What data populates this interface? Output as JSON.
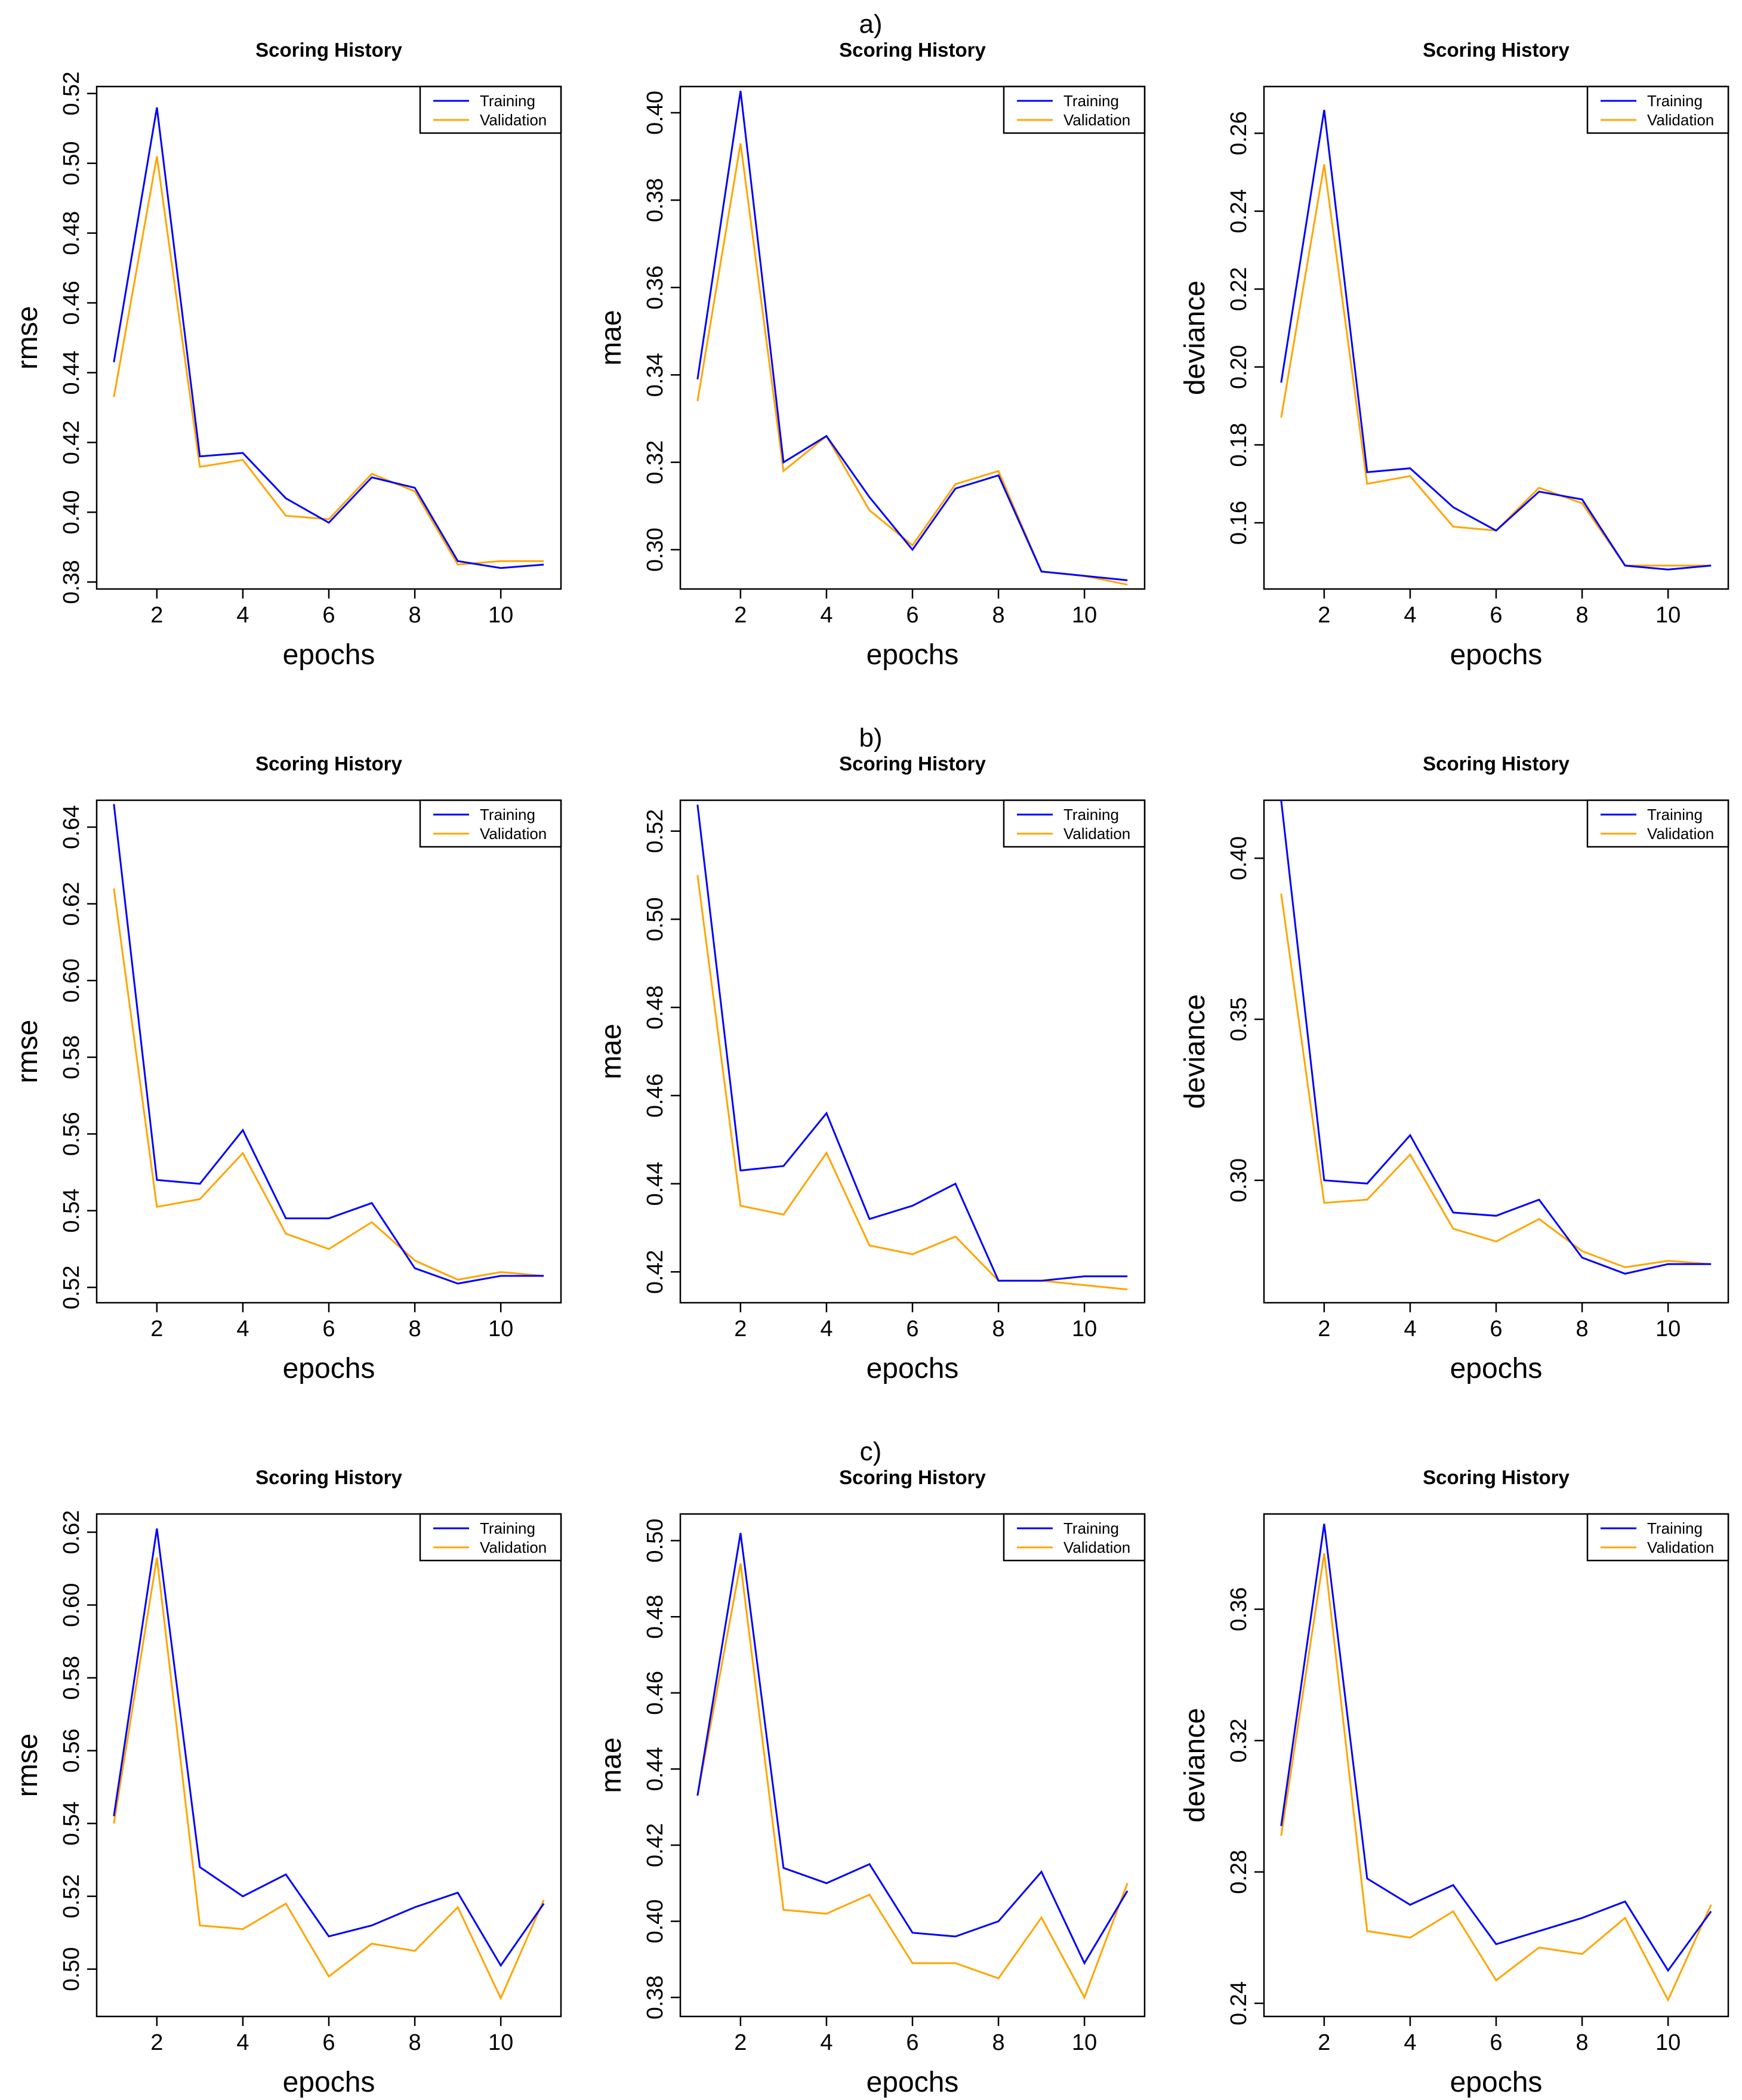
{
  "figure": {
    "row_labels": [
      "a)",
      "b)",
      "c)"
    ],
    "legend": {
      "training": "Training",
      "validation": "Validation"
    },
    "colors": {
      "training": "#0000FF",
      "validation": "#FFA500",
      "axes": "#000000",
      "background": "#FFFFFF"
    }
  },
  "chart_data": [
    {
      "type": "line",
      "title": "Scoring History",
      "xlabel": "epochs",
      "ylabel": "rmse",
      "xlim": [
        0.6,
        11.4
      ],
      "ylim": [
        0.378,
        0.522
      ],
      "xticks": [
        "2",
        "4",
        "6",
        "8",
        "10"
      ],
      "yticks": [
        "0.38",
        "0.40",
        "0.42",
        "0.44",
        "0.46",
        "0.48",
        "0.50",
        "0.52"
      ],
      "x": [
        1,
        2,
        3,
        4,
        5,
        6,
        7,
        8,
        9,
        10,
        11
      ],
      "series": [
        {
          "name": "Training",
          "values": [
            0.443,
            0.516,
            0.416,
            0.417,
            0.404,
            0.397,
            0.41,
            0.407,
            0.386,
            0.384,
            0.385
          ]
        },
        {
          "name": "Validation",
          "values": [
            0.433,
            0.502,
            0.413,
            0.415,
            0.399,
            0.398,
            0.411,
            0.406,
            0.385,
            0.386,
            0.386
          ]
        }
      ]
    },
    {
      "type": "line",
      "title": "Scoring History",
      "xlabel": "epochs",
      "ylabel": "mae",
      "xlim": [
        0.6,
        11.4
      ],
      "ylim": [
        0.291,
        0.406
      ],
      "xticks": [
        "2",
        "4",
        "6",
        "8",
        "10"
      ],
      "yticks": [
        "0.30",
        "0.32",
        "0.34",
        "0.36",
        "0.38",
        "0.40"
      ],
      "x": [
        1,
        2,
        3,
        4,
        5,
        6,
        7,
        8,
        9,
        10,
        11
      ],
      "series": [
        {
          "name": "Training",
          "values": [
            0.339,
            0.405,
            0.32,
            0.326,
            0.312,
            0.3,
            0.314,
            0.317,
            0.295,
            0.294,
            0.293
          ]
        },
        {
          "name": "Validation",
          "values": [
            0.334,
            0.393,
            0.318,
            0.326,
            0.309,
            0.301,
            0.315,
            0.318,
            0.295,
            0.294,
            0.292
          ]
        }
      ]
    },
    {
      "type": "line",
      "title": "Scoring History",
      "xlabel": "epochs",
      "ylabel": "deviance",
      "xlim": [
        0.6,
        11.4
      ],
      "ylim": [
        0.143,
        0.272
      ],
      "xticks": [
        "2",
        "4",
        "6",
        "8",
        "10"
      ],
      "yticks": [
        "0.16",
        "0.18",
        "0.20",
        "0.22",
        "0.24",
        "0.26"
      ],
      "x": [
        1,
        2,
        3,
        4,
        5,
        6,
        7,
        8,
        9,
        10,
        11
      ],
      "series": [
        {
          "name": "Training",
          "values": [
            0.196,
            0.266,
            0.173,
            0.174,
            0.164,
            0.158,
            0.168,
            0.166,
            0.149,
            0.148,
            0.149
          ]
        },
        {
          "name": "Validation",
          "values": [
            0.187,
            0.252,
            0.17,
            0.172,
            0.159,
            0.158,
            0.169,
            0.165,
            0.149,
            0.149,
            0.149
          ]
        }
      ]
    },
    {
      "type": "line",
      "title": "Scoring History",
      "xlabel": "epochs",
      "ylabel": "rmse",
      "xlim": [
        0.6,
        11.4
      ],
      "ylim": [
        0.516,
        0.647
      ],
      "xticks": [
        "2",
        "4",
        "6",
        "8",
        "10"
      ],
      "yticks": [
        "0.52",
        "0.54",
        "0.56",
        "0.58",
        "0.60",
        "0.62",
        "0.64"
      ],
      "x": [
        1,
        2,
        3,
        4,
        5,
        6,
        7,
        8,
        9,
        10,
        11
      ],
      "series": [
        {
          "name": "Training",
          "values": [
            0.646,
            0.548,
            0.547,
            0.561,
            0.538,
            0.538,
            0.542,
            0.525,
            0.521,
            0.523,
            0.523
          ]
        },
        {
          "name": "Validation",
          "values": [
            0.624,
            0.541,
            0.543,
            0.555,
            0.534,
            0.53,
            0.537,
            0.527,
            0.522,
            0.524,
            0.523
          ]
        }
      ]
    },
    {
      "type": "line",
      "title": "Scoring History",
      "xlabel": "epochs",
      "ylabel": "mae",
      "xlim": [
        0.6,
        11.4
      ],
      "ylim": [
        0.413,
        0.527
      ],
      "xticks": [
        "2",
        "4",
        "6",
        "8",
        "10"
      ],
      "yticks": [
        "0.42",
        "0.44",
        "0.46",
        "0.48",
        "0.50",
        "0.52"
      ],
      "x": [
        1,
        2,
        3,
        4,
        5,
        6,
        7,
        8,
        9,
        10,
        11
      ],
      "series": [
        {
          "name": "Training",
          "values": [
            0.526,
            0.443,
            0.444,
            0.456,
            0.432,
            0.435,
            0.44,
            0.418,
            0.418,
            0.419,
            0.419
          ]
        },
        {
          "name": "Validation",
          "values": [
            0.51,
            0.435,
            0.433,
            0.447,
            0.426,
            0.424,
            0.428,
            0.418,
            0.418,
            0.417,
            0.416
          ]
        }
      ]
    },
    {
      "type": "line",
      "title": "Scoring History",
      "xlabel": "epochs",
      "ylabel": "deviance",
      "xlim": [
        0.6,
        11.4
      ],
      "ylim": [
        0.262,
        0.418
      ],
      "xticks": [
        "2",
        "4",
        "6",
        "8",
        "10"
      ],
      "yticks": [
        "0.30",
        "0.35",
        "0.40"
      ],
      "x": [
        1,
        2,
        3,
        4,
        5,
        6,
        7,
        8,
        9,
        10,
        11
      ],
      "series": [
        {
          "name": "Training",
          "values": [
            0.418,
            0.3,
            0.299,
            0.314,
            0.29,
            0.289,
            0.294,
            0.276,
            0.271,
            0.274,
            0.274
          ]
        },
        {
          "name": "Validation",
          "values": [
            0.389,
            0.293,
            0.294,
            0.308,
            0.285,
            0.281,
            0.288,
            0.278,
            0.273,
            0.275,
            0.274
          ]
        }
      ]
    },
    {
      "type": "line",
      "title": "Scoring History",
      "xlabel": "epochs",
      "ylabel": "rmse",
      "xlim": [
        0.6,
        11.4
      ],
      "ylim": [
        0.487,
        0.625
      ],
      "xticks": [
        "2",
        "4",
        "6",
        "8",
        "10"
      ],
      "yticks": [
        "0.50",
        "0.52",
        "0.54",
        "0.56",
        "0.58",
        "0.60",
        "0.62"
      ],
      "x": [
        1,
        2,
        3,
        4,
        5,
        6,
        7,
        8,
        9,
        10,
        11
      ],
      "series": [
        {
          "name": "Training",
          "values": [
            0.542,
            0.621,
            0.528,
            0.52,
            0.526,
            0.509,
            0.512,
            0.517,
            0.521,
            0.501,
            0.518
          ]
        },
        {
          "name": "Validation",
          "values": [
            0.54,
            0.613,
            0.512,
            0.511,
            0.518,
            0.498,
            0.507,
            0.505,
            0.517,
            0.492,
            0.519
          ]
        }
      ]
    },
    {
      "type": "line",
      "title": "Scoring History",
      "xlabel": "epochs",
      "ylabel": "mae",
      "xlim": [
        0.6,
        11.4
      ],
      "ylim": [
        0.375,
        0.507
      ],
      "xticks": [
        "2",
        "4",
        "6",
        "8",
        "10"
      ],
      "yticks": [
        "0.38",
        "0.40",
        "0.42",
        "0.44",
        "0.46",
        "0.48",
        "0.50"
      ],
      "x": [
        1,
        2,
        3,
        4,
        5,
        6,
        7,
        8,
        9,
        10,
        11
      ],
      "series": [
        {
          "name": "Training",
          "values": [
            0.433,
            0.502,
            0.414,
            0.41,
            0.415,
            0.397,
            0.396,
            0.4,
            0.413,
            0.389,
            0.408
          ]
        },
        {
          "name": "Validation",
          "values": [
            0.433,
            0.494,
            0.403,
            0.402,
            0.407,
            0.389,
            0.389,
            0.385,
            0.401,
            0.38,
            0.41
          ]
        }
      ]
    },
    {
      "type": "line",
      "title": "Scoring History",
      "xlabel": "epochs",
      "ylabel": "deviance",
      "xlim": [
        0.6,
        11.4
      ],
      "ylim": [
        0.236,
        0.389
      ],
      "xticks": [
        "2",
        "4",
        "6",
        "8",
        "10"
      ],
      "yticks": [
        "0.24",
        "0.28",
        "0.32",
        "0.36"
      ],
      "x": [
        1,
        2,
        3,
        4,
        5,
        6,
        7,
        8,
        9,
        10,
        11
      ],
      "series": [
        {
          "name": "Training",
          "values": [
            0.294,
            0.386,
            0.278,
            0.27,
            0.276,
            0.258,
            0.262,
            0.266,
            0.271,
            0.25,
            0.268
          ]
        },
        {
          "name": "Validation",
          "values": [
            0.291,
            0.377,
            0.262,
            0.26,
            0.268,
            0.247,
            0.257,
            0.255,
            0.266,
            0.241,
            0.27
          ]
        }
      ]
    }
  ]
}
